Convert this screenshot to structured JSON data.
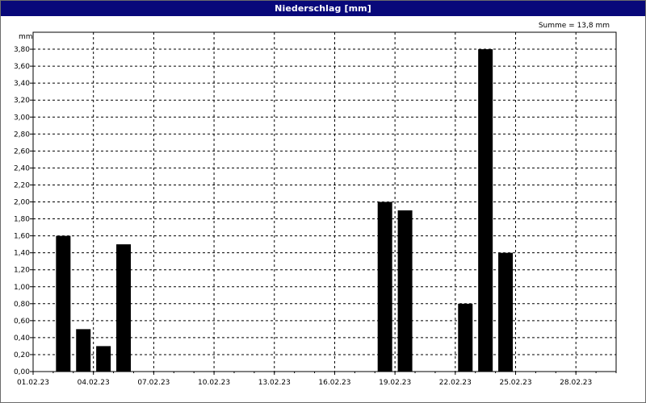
{
  "window": {
    "title": "Niederschlag [mm]"
  },
  "summary": {
    "text": "Summe = 13,8 mm"
  },
  "chart_data": {
    "type": "bar",
    "title": "Niederschlag [mm]",
    "ylabel": "mm",
    "xlabel": "",
    "ylim": [
      0,
      4.0
    ],
    "y_ticks": [
      "0,00",
      "0,20",
      "0,40",
      "0,60",
      "0,80",
      "1,00",
      "1,20",
      "1,40",
      "1,60",
      "1,80",
      "2,00",
      "2,20",
      "2,40",
      "2,60",
      "2,80",
      "3,00",
      "3,20",
      "3,40",
      "3,60",
      "3,80"
    ],
    "x_ticks": [
      "01.02.23",
      "04.02.23",
      "07.02.23",
      "10.02.23",
      "13.02.23",
      "16.02.23",
      "19.02.23",
      "22.02.23",
      "25.02.23",
      "28.02.23"
    ],
    "x_range_days": [
      1,
      30
    ],
    "grid": true,
    "bar_color": "#000000",
    "bars": [
      {
        "day": 2,
        "value": 1.6
      },
      {
        "day": 3,
        "value": 0.5
      },
      {
        "day": 4,
        "value": 0.3
      },
      {
        "day": 5,
        "value": 1.5
      },
      {
        "day": 18,
        "value": 2.0
      },
      {
        "day": 19,
        "value": 1.9
      },
      {
        "day": 22,
        "value": 0.8
      },
      {
        "day": 23,
        "value": 3.8
      },
      {
        "day": 24,
        "value": 1.4
      }
    ],
    "sum": "13,8 mm"
  }
}
